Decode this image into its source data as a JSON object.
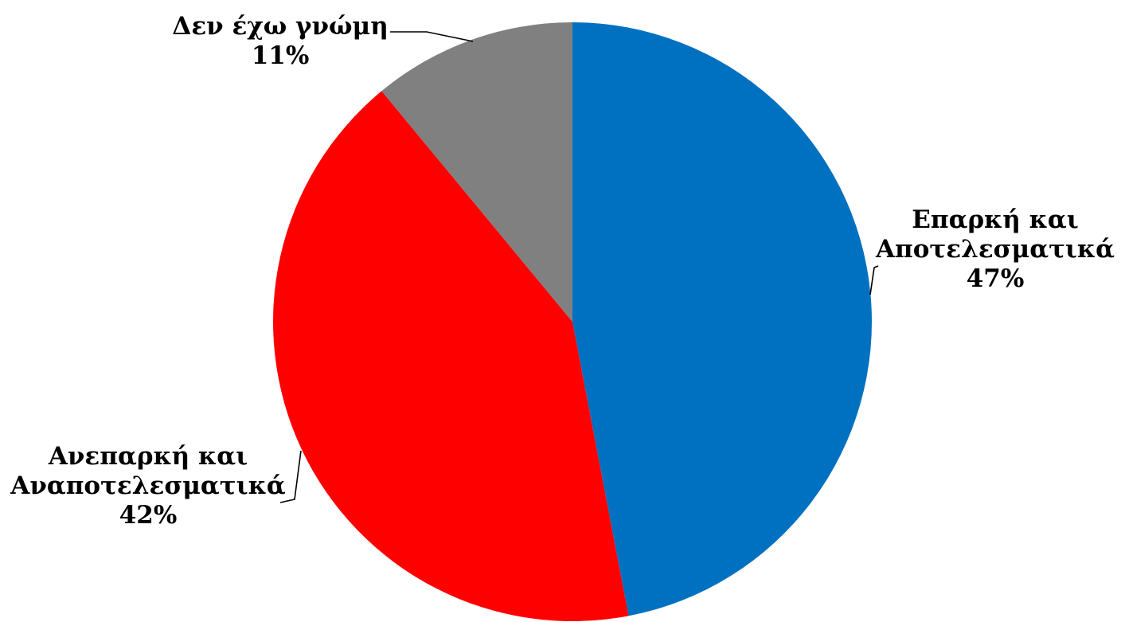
{
  "chart_data": {
    "type": "pie",
    "title": "",
    "unit": "%",
    "slices": [
      {
        "label_lines": [
          "Επαρκή και",
          "Αποτελεσματικά"
        ],
        "value": 47,
        "value_text": "47%",
        "color": "#0070C0"
      },
      {
        "label_lines": [
          "Ανεπαρκή και",
          "Αναποτελεσματικά"
        ],
        "value": 42,
        "value_text": "42%",
        "color": "#FF0000"
      },
      {
        "label_lines": [
          "Δεν έχω γνώμη"
        ],
        "value": 11,
        "value_text": "11%",
        "color": "#808080"
      }
    ],
    "start_direction": "top",
    "rotation": "clockwise",
    "legend": "none",
    "data_labels": "outside with leader lines"
  }
}
